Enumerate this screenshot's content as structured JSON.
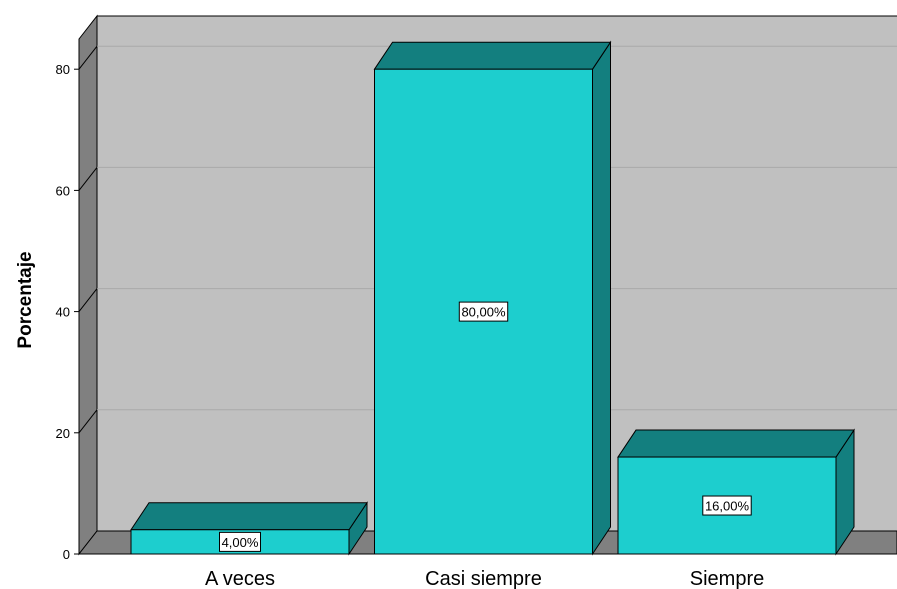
{
  "chart_data": {
    "type": "bar",
    "style": "3d",
    "categories": [
      "A veces",
      "Casi siempre",
      "Siempre"
    ],
    "values": [
      4,
      80,
      16
    ],
    "data_labels": [
      "4,00%",
      "80,00%",
      "16,00%"
    ],
    "title": "",
    "xlabel": "",
    "ylabel": "Porcentaje",
    "ylim": [
      0,
      85
    ],
    "yticks": [
      0,
      20,
      40,
      60,
      80
    ],
    "grid": true,
    "legend": "none",
    "colors": {
      "bar_front": "#1dcece",
      "bar_top": "#137f7f",
      "bar_side": "#137f7f",
      "plot_background": "#c0c0c0",
      "left_wall": "#808080",
      "floor": "#808080",
      "gridline": "#a9a9a9"
    }
  }
}
